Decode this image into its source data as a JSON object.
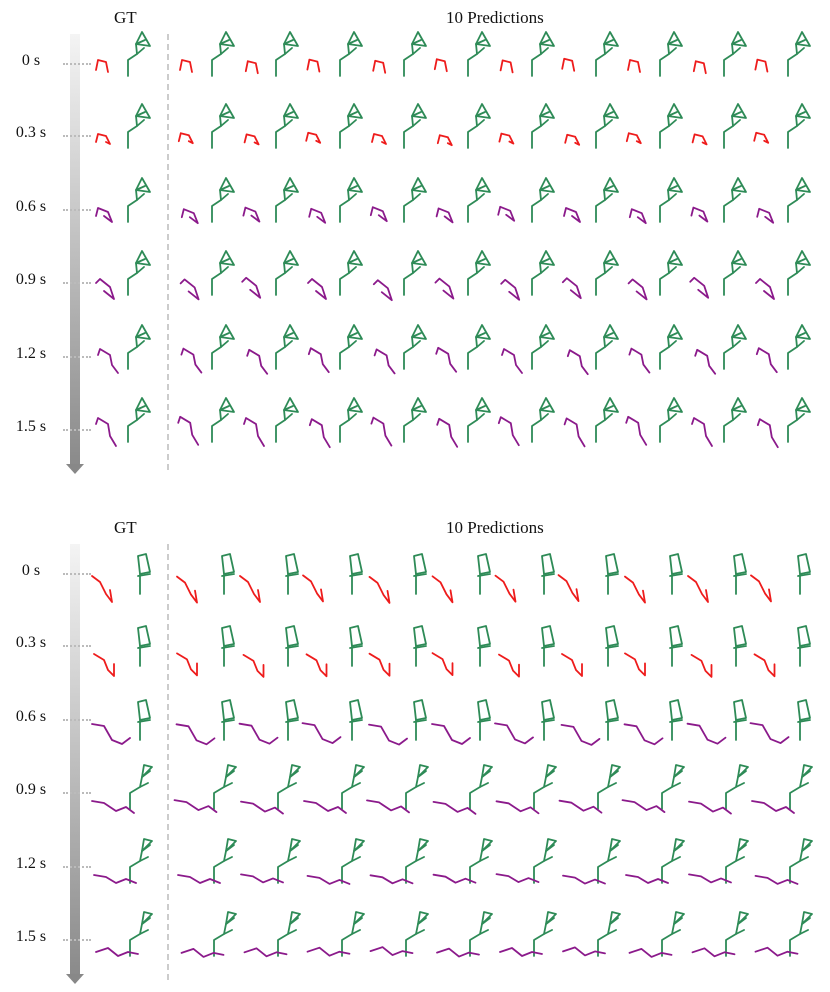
{
  "panels": [
    {
      "gt_label": "GT",
      "pred_label": "10 Predictions",
      "time_labels": [
        "0 s",
        "0.3 s",
        "0.6 s",
        "0.9 s",
        "1.2 s",
        "1.5 s"
      ],
      "num_predictions": 10,
      "pose_style": "A"
    },
    {
      "gt_label": "GT",
      "pred_label": "10 Predictions",
      "time_labels": [
        "0 s",
        "0.3 s",
        "0.6 s",
        "0.9 s",
        "1.2 s",
        "1.5 s"
      ],
      "num_predictions": 10,
      "pose_style": "B"
    }
  ],
  "colors": {
    "body": "#2e8b57",
    "observed_limb": "#ee1c1c",
    "predicted_limb": "#8b1a8b",
    "timebar_start": "#f4f4f4",
    "timebar_end": "#8a8a8a"
  }
}
